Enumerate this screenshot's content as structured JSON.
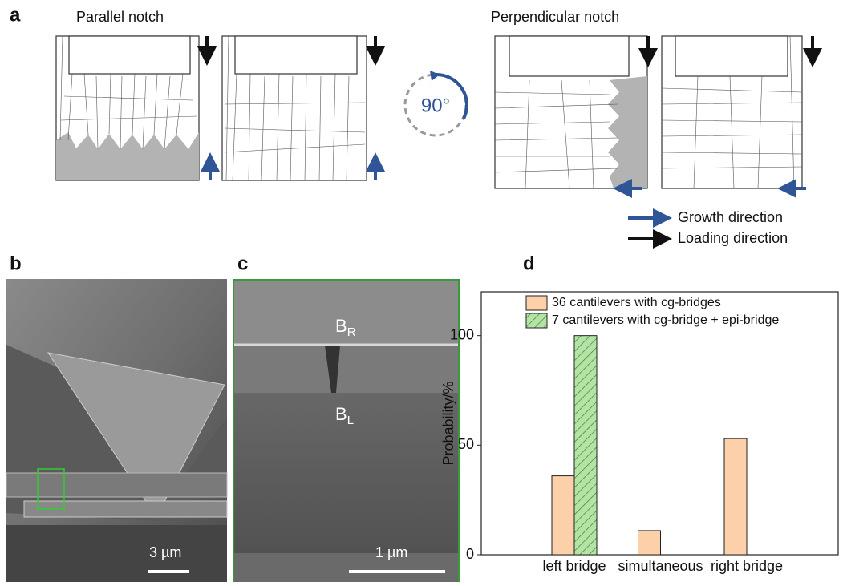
{
  "panels": {
    "a": {
      "label": "a",
      "parallel_title": "Parallel notch",
      "perpendicular_title": "Perpendicular notch",
      "angle": "90°",
      "growth_direction": "Growth direction",
      "loading_direction": "Loading direction"
    },
    "b": {
      "label": "b",
      "scale_bar": "3 µm"
    },
    "c": {
      "label": "c",
      "scale_bar": "1 µm",
      "annotations": [
        {
          "base": "B",
          "sub": "R"
        },
        {
          "base": "B",
          "sub": "L"
        }
      ]
    },
    "d": {
      "label": "d"
    }
  },
  "chart_data": {
    "type": "bar",
    "y_label": "Probability/%",
    "categories": [
      "left bridge",
      "simultaneous",
      "right bridge"
    ],
    "series": [
      {
        "name": "36 cantilevers with cg-bridges",
        "color": "#fcd0a8",
        "values": [
          36,
          11,
          53
        ]
      },
      {
        "name": "7 cantilevers with cg-bridge + epi-bridge",
        "color": "#b5e3a5",
        "hatch": true,
        "values": [
          100,
          0,
          0
        ]
      }
    ],
    "ylim": [
      0,
      120
    ],
    "yticks": [
      0,
      50,
      100
    ],
    "legend": "upper left"
  }
}
